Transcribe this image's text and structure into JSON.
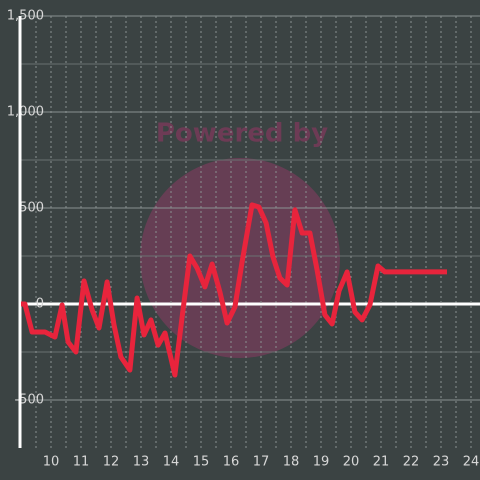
{
  "chart_data": {
    "type": "line",
    "watermark": "Powered by",
    "x": [
      9,
      9.13,
      9.37,
      9.8,
      10.13,
      10.37,
      10.57,
      10.83,
      11.1,
      11.37,
      11.6,
      11.87,
      12.1,
      12.33,
      12.63,
      12.87,
      13.1,
      13.33,
      13.57,
      13.8,
      14.13,
      14.37,
      14.63,
      14.87,
      15.13,
      15.37,
      15.63,
      15.87,
      16.13,
      16.37,
      16.7,
      16.93,
      17.17,
      17.4,
      17.63,
      17.87,
      18.13,
      18.37,
      18.63,
      18.87,
      19.13,
      19.37,
      19.6,
      19.87,
      20.13,
      20.37,
      20.63,
      20.9,
      21.13,
      23.2
    ],
    "series": [
      {
        "color": "#e8243c",
        "values": [
          0,
          0,
          -146,
          -146,
          -172,
          -5,
          -198,
          -250,
          120,
          -31,
          -125,
          115,
          -109,
          -276,
          -344,
          31,
          -161,
          -83,
          -214,
          -151,
          -370,
          -68,
          250,
          187,
          89,
          208,
          63,
          -99,
          -16,
          219,
          516,
          505,
          422,
          245,
          135,
          99,
          490,
          370,
          370,
          177,
          -57,
          -104,
          68,
          167,
          -42,
          -83,
          -5,
          198,
          167,
          167
        ]
      }
    ],
    "xlim": [
      9,
      24.3
    ],
    "xticks": [
      10,
      11,
      12,
      13,
      14,
      15,
      16,
      17,
      18,
      19,
      20,
      21,
      22,
      23,
      24
    ],
    "minor_xticks": [
      9.5,
      10.5,
      11.5,
      12.5,
      13.5,
      14.5,
      15.5,
      16.5,
      17.5,
      18.5,
      19.5,
      20.5,
      21.5,
      22.5,
      23.5
    ],
    "ylim": [
      -750,
      1500
    ],
    "yticks": [
      {
        "value": -500,
        "label": "-500"
      },
      0,
      500,
      {
        "value": 1000,
        "label": "1,000"
      },
      {
        "value": 1500,
        "label": "1,500"
      }
    ],
    "minor_yticks": [
      -250,
      250,
      750,
      1250
    ],
    "grid": true
  }
}
